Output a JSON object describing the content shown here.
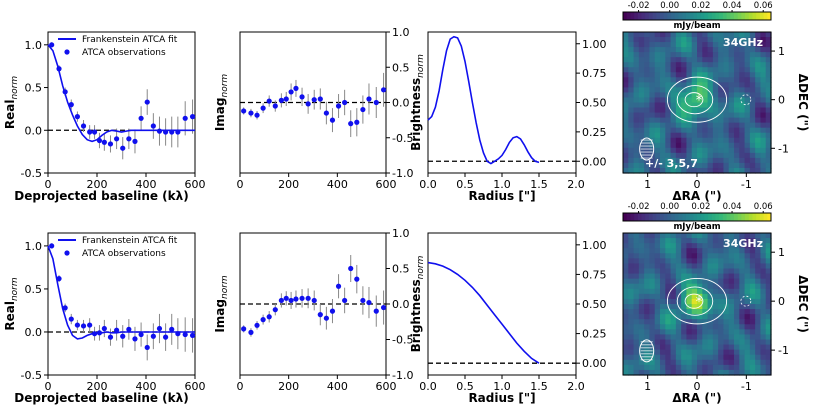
{
  "colors": {
    "fit": "#1010ee",
    "obs": "#1010ee",
    "err": "#888888",
    "zero": "#000000"
  },
  "chart_data": [
    {
      "type": "line",
      "panel": "top-real",
      "xlabel": "Deprojected baseline (kλ)",
      "ylabel": "Real",
      "ylabel_sub": "norm",
      "xlim": [
        0,
        600
      ],
      "ylim": [
        -0.5,
        1.15
      ],
      "xticks": [
        "0",
        "200",
        "400",
        "600"
      ],
      "yticks": [
        "-0.5",
        "0.0",
        "0.5",
        "1.0"
      ],
      "legend": [
        "Frankenstein ATCA fit",
        "ATCA observations"
      ],
      "fit": {
        "x": [
          0,
          20,
          40,
          60,
          80,
          100,
          120,
          140,
          160,
          180,
          200,
          220,
          240,
          260,
          280,
          300,
          320,
          340,
          360,
          380,
          400,
          450,
          500,
          550,
          600
        ],
        "y": [
          1.0,
          0.93,
          0.75,
          0.52,
          0.33,
          0.18,
          0.05,
          -0.05,
          -0.11,
          -0.13,
          -0.11,
          -0.06,
          -0.02,
          0.0,
          -0.01,
          -0.02,
          -0.01,
          0.0,
          0.0,
          0.0,
          0.0,
          0.0,
          0.0,
          0.0,
          0.0
        ]
      },
      "obs": {
        "x": [
          15,
          45,
          70,
          95,
          120,
          145,
          170,
          190,
          210,
          230,
          255,
          280,
          305,
          330,
          355,
          380,
          405,
          430,
          455,
          480,
          505,
          530,
          560,
          590
        ],
        "y": [
          1.0,
          0.72,
          0.45,
          0.3,
          0.16,
          0.05,
          -0.02,
          -0.02,
          -0.12,
          -0.14,
          -0.16,
          -0.1,
          -0.21,
          -0.1,
          -0.13,
          0.14,
          0.33,
          0.05,
          -0.01,
          -0.02,
          -0.02,
          -0.02,
          0.14,
          0.16
        ],
        "err": [
          0.03,
          0.04,
          0.05,
          0.06,
          0.06,
          0.07,
          0.08,
          0.08,
          0.09,
          0.1,
          0.1,
          0.12,
          0.13,
          0.12,
          0.14,
          0.14,
          0.15,
          0.15,
          0.17,
          0.16,
          0.18,
          0.18,
          0.2,
          0.2
        ]
      }
    },
    {
      "type": "scatter",
      "panel": "top-imag",
      "ylabel": "Imag",
      "ylabel_sub": "norm",
      "xlim": [
        0,
        600
      ],
      "ylim": [
        -1.0,
        1.0
      ],
      "xticks": [
        "0",
        "200",
        "400",
        "600"
      ],
      "yticks": [
        "-1.0",
        "-0.5",
        "0.0",
        "0.5",
        "1.0"
      ],
      "obs": {
        "x": [
          15,
          45,
          70,
          95,
          120,
          145,
          170,
          190,
          210,
          230,
          255,
          280,
          305,
          330,
          355,
          380,
          405,
          430,
          455,
          480,
          505,
          530,
          560,
          590
        ],
        "y": [
          -0.12,
          -0.15,
          -0.18,
          -0.08,
          0.02,
          -0.05,
          0.03,
          0.05,
          0.15,
          0.2,
          0.08,
          -0.02,
          0.04,
          0.05,
          -0.15,
          -0.25,
          -0.05,
          0.0,
          -0.3,
          -0.28,
          -0.1,
          0.05,
          0.0,
          0.18
        ],
        "err": [
          0.05,
          0.06,
          0.06,
          0.07,
          0.08,
          0.08,
          0.1,
          0.1,
          0.12,
          0.12,
          0.13,
          0.14,
          0.14,
          0.15,
          0.16,
          0.17,
          0.17,
          0.18,
          0.19,
          0.2,
          0.2,
          0.22,
          0.22,
          0.24
        ]
      }
    },
    {
      "type": "line",
      "panel": "top-brightness",
      "xlabel": "Radius [\"]",
      "ylabel": "Brightness",
      "ylabel_sub": "norm",
      "xlim": [
        0,
        2.0
      ],
      "ylim": [
        -0.1,
        1.1
      ],
      "xticks": [
        "0.0",
        "0.5",
        "1.0",
        "1.5",
        "2.0"
      ],
      "yticks": [
        "0.00",
        "0.25",
        "0.50",
        "0.75",
        "1.00"
      ],
      "fit": {
        "x": [
          0,
          0.05,
          0.1,
          0.15,
          0.2,
          0.25,
          0.3,
          0.35,
          0.4,
          0.45,
          0.5,
          0.55,
          0.6,
          0.65,
          0.7,
          0.75,
          0.8,
          0.85,
          0.9,
          0.95,
          1.0,
          1.05,
          1.1,
          1.15,
          1.2,
          1.25,
          1.3,
          1.35,
          1.4,
          1.45,
          1.5
        ],
        "y": [
          0.35,
          0.38,
          0.46,
          0.6,
          0.78,
          0.94,
          1.04,
          1.06,
          1.05,
          0.98,
          0.85,
          0.68,
          0.5,
          0.33,
          0.18,
          0.07,
          0.0,
          -0.02,
          0.0,
          0.02,
          0.05,
          0.1,
          0.16,
          0.2,
          0.21,
          0.19,
          0.14,
          0.08,
          0.03,
          0.0,
          -0.01
        ]
      }
    },
    {
      "type": "heatmap",
      "panel": "top-map",
      "title": "34GHz",
      "annotation": "+/- 3,5,7",
      "colorbar": {
        "label": "mJy/beam",
        "ticks": [
          "-0.02",
          "0.00",
          "0.02",
          "0.04",
          "0.06"
        ],
        "range": [
          -0.03,
          0.065
        ]
      },
      "xlabel": "ΔRA (\")",
      "ylabel": "ΔDEC (\")",
      "xticks": [
        "1",
        "0",
        "-1"
      ],
      "yticks": [
        "1",
        "0",
        "-1"
      ]
    },
    {
      "type": "line",
      "panel": "bottom-real",
      "xlabel": "Deprojected baseline (kλ)",
      "ylabel": "Real",
      "ylabel_sub": "norm",
      "xlim": [
        0,
        600
      ],
      "ylim": [
        -0.5,
        1.15
      ],
      "xticks": [
        "0",
        "200",
        "400",
        "600"
      ],
      "yticks": [
        "-0.5",
        "0.0",
        "0.5",
        "1.0"
      ],
      "legend": [
        "Frankenstein ATCA fit",
        "ATCA observations"
      ],
      "fit": {
        "x": [
          0,
          20,
          40,
          60,
          80,
          100,
          120,
          140,
          160,
          180,
          200,
          220,
          240,
          260,
          280,
          300,
          350,
          400,
          450,
          500,
          550,
          600
        ],
        "y": [
          1.0,
          0.85,
          0.55,
          0.27,
          0.08,
          -0.04,
          -0.08,
          -0.07,
          -0.04,
          -0.02,
          -0.01,
          -0.01,
          0.0,
          -0.01,
          -0.01,
          0.0,
          0.0,
          0.0,
          0.0,
          0.0,
          0.0,
          0.0
        ]
      },
      "obs": {
        "x": [
          15,
          45,
          70,
          95,
          120,
          145,
          170,
          190,
          210,
          230,
          255,
          280,
          305,
          330,
          355,
          380,
          405,
          430,
          455,
          480,
          505,
          530,
          560,
          590
        ],
        "y": [
          1.0,
          0.62,
          0.28,
          0.15,
          0.08,
          0.07,
          0.08,
          -0.02,
          -0.01,
          0.04,
          -0.06,
          0.02,
          -0.05,
          0.03,
          -0.08,
          -0.03,
          -0.18,
          -0.05,
          0.04,
          -0.06,
          0.03,
          -0.02,
          -0.03,
          -0.04
        ],
        "err": [
          0.03,
          0.04,
          0.05,
          0.06,
          0.06,
          0.07,
          0.08,
          0.08,
          0.09,
          0.1,
          0.1,
          0.12,
          0.13,
          0.12,
          0.14,
          0.14,
          0.15,
          0.15,
          0.17,
          0.16,
          0.18,
          0.18,
          0.2,
          0.2
        ]
      }
    },
    {
      "type": "scatter",
      "panel": "bottom-imag",
      "ylabel": "Imag",
      "ylabel_sub": "norm",
      "xlim": [
        0,
        600
      ],
      "ylim": [
        -1.0,
        1.0
      ],
      "xticks": [
        "0",
        "200",
        "400",
        "600"
      ],
      "yticks": [
        "-1.0",
        "-0.5",
        "0.0",
        "0.5",
        "1.0"
      ],
      "obs": {
        "x": [
          15,
          45,
          70,
          95,
          120,
          145,
          170,
          190,
          210,
          230,
          255,
          280,
          305,
          330,
          355,
          380,
          405,
          430,
          455,
          480,
          505,
          530,
          560,
          590
        ],
        "y": [
          -0.35,
          -0.4,
          -0.3,
          -0.22,
          -0.18,
          -0.08,
          0.05,
          0.08,
          0.05,
          0.07,
          0.08,
          0.08,
          0.05,
          -0.15,
          -0.2,
          -0.1,
          0.25,
          0.05,
          0.5,
          0.35,
          0.05,
          0.02,
          -0.1,
          -0.05
        ],
        "err": [
          0.05,
          0.06,
          0.06,
          0.07,
          0.08,
          0.08,
          0.1,
          0.1,
          0.12,
          0.12,
          0.13,
          0.14,
          0.14,
          0.15,
          0.16,
          0.17,
          0.17,
          0.18,
          0.19,
          0.2,
          0.2,
          0.22,
          0.22,
          0.24
        ]
      }
    },
    {
      "type": "line",
      "panel": "bottom-brightness",
      "xlabel": "Radius [\"]",
      "ylabel": "Brightness",
      "ylabel_sub": "norm",
      "xlim": [
        0,
        2.0
      ],
      "ylim": [
        -0.1,
        1.1
      ],
      "xticks": [
        "0.0",
        "0.5",
        "1.0",
        "1.5",
        "2.0"
      ],
      "yticks": [
        "0.00",
        "0.25",
        "0.50",
        "0.75",
        "1.00"
      ],
      "fit": {
        "x": [
          0,
          0.1,
          0.2,
          0.3,
          0.4,
          0.5,
          0.6,
          0.7,
          0.8,
          0.9,
          1.0,
          1.1,
          1.2,
          1.3,
          1.4,
          1.5
        ],
        "y": [
          0.85,
          0.84,
          0.82,
          0.79,
          0.75,
          0.7,
          0.64,
          0.57,
          0.49,
          0.41,
          0.33,
          0.25,
          0.17,
          0.1,
          0.04,
          0.0
        ]
      }
    },
    {
      "type": "heatmap",
      "panel": "bottom-map",
      "title": "34GHz",
      "colorbar": {
        "label": "mJy/beam",
        "ticks": [
          "-0.02",
          "0.00",
          "0.02",
          "0.04",
          "0.06"
        ],
        "range": [
          -0.03,
          0.065
        ]
      },
      "xlabel": "ΔRA (\")",
      "ylabel": "ΔDEC (\")",
      "xticks": [
        "1",
        "0",
        "-1"
      ],
      "yticks": [
        "1",
        "0",
        "-1"
      ]
    }
  ]
}
